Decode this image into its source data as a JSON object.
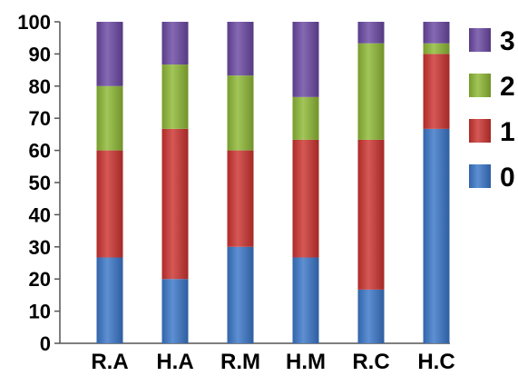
{
  "chart_data": {
    "type": "bar",
    "stacked": true,
    "categories": [
      "R.A",
      "H.A",
      "R.M",
      "H.M",
      "R.C",
      "H.C"
    ],
    "series": [
      {
        "name": "0",
        "color": "#3a76c8",
        "values": [
          26.7,
          20.0,
          30.0,
          26.7,
          16.7,
          66.7
        ]
      },
      {
        "name": "1",
        "color": "#cc3330",
        "values": [
          33.3,
          46.7,
          30.0,
          36.6,
          46.6,
          23.3
        ]
      },
      {
        "name": "2",
        "color": "#8db834",
        "values": [
          20.0,
          20.0,
          23.3,
          13.3,
          30.0,
          3.3
        ]
      },
      {
        "name": "3",
        "color": "#6a48a2",
        "values": [
          20.0,
          13.3,
          16.7,
          23.4,
          6.7,
          6.7
        ]
      }
    ],
    "ylim": [
      0,
      100
    ],
    "yticks": [
      "0",
      "10",
      "20",
      "30",
      "40",
      "50",
      "60",
      "70",
      "80",
      "90",
      "100"
    ],
    "legend_position": "right",
    "grid": false
  }
}
